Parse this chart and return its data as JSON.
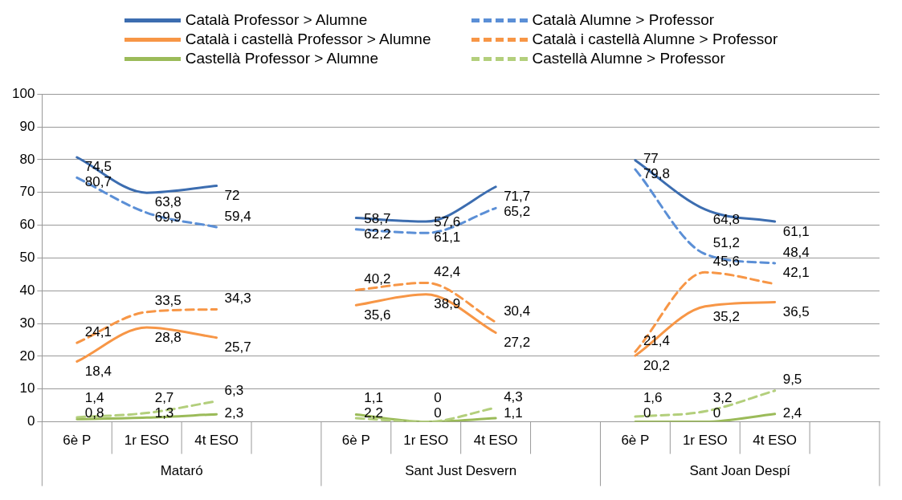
{
  "chart_data": {
    "type": "line",
    "categories": [
      "6è P",
      "1r ESO",
      "4t ESO",
      null,
      "6è P",
      "1r ESO",
      "4t ESO",
      null,
      "6è P",
      "1r ESO",
      "4t ESO",
      null
    ],
    "annotations": [
      "Mataró",
      "Sant Just Desvern",
      "Sant Joan Despí"
    ],
    "ylim": [
      0,
      100
    ],
    "yticks": [
      0,
      10,
      20,
      30,
      40,
      50,
      60,
      70,
      80,
      90,
      100
    ],
    "grid": "y",
    "legend": "top",
    "marker": "none",
    "series": [
      {
        "name": "Català Professor > Alumne",
        "color": "#3c6db0",
        "line_style": "solid",
        "values": [
          80.7,
          69.9,
          72,
          null,
          62.2,
          61.1,
          71.7,
          null,
          79.8,
          64.8,
          61.1,
          null
        ],
        "value_labels": [
          "80,7",
          "69,9",
          "72",
          null,
          "62,2",
          "61,1",
          "71,7",
          null,
          "79,8",
          "64,8",
          "61,1",
          null
        ]
      },
      {
        "name": "Català Alumne > Professor",
        "color": "#5b8fd6",
        "line_style": "dashed",
        "values": [
          74.5,
          63.8,
          59.4,
          null,
          58.7,
          57.6,
          65.2,
          null,
          77,
          51.2,
          48.4,
          null
        ],
        "value_labels": [
          "74,5",
          "63,8",
          "59,4",
          null,
          "58,7",
          "57,6",
          "65,2",
          null,
          "77",
          "51,2",
          "48,4",
          null
        ]
      },
      {
        "name": "Català i castellà Professor > Alumne",
        "color": "#f79646",
        "line_style": "solid",
        "values": [
          18.4,
          28.8,
          25.7,
          null,
          35.6,
          38.9,
          27.2,
          null,
          20.2,
          35.2,
          36.5,
          null
        ],
        "value_labels": [
          "18,4",
          "28,8",
          "25,7",
          null,
          "35,6",
          "38,9",
          "27,2",
          null,
          "20,2",
          "35,2",
          "36,5",
          null
        ]
      },
      {
        "name": "Català i castellà Alumne > Professor",
        "color": "#f79646",
        "line_style": "dashed",
        "values": [
          24.1,
          33.5,
          34.3,
          null,
          40.2,
          42.4,
          30.4,
          null,
          21.4,
          45.6,
          42.1,
          null
        ],
        "value_labels": [
          "24,1",
          "33,5",
          "34,3",
          null,
          "40,2",
          "42,4",
          "30,4",
          null,
          "21,4",
          "45,6",
          "42,1",
          null
        ]
      },
      {
        "name": "Castellà Professor > Alumne",
        "color": "#9bbb59",
        "line_style": "solid",
        "values": [
          0.8,
          1.3,
          2.3,
          null,
          2.2,
          0,
          1.1,
          null,
          0,
          0,
          2.4,
          null
        ],
        "value_labels": [
          "0,8",
          "1,3",
          "2,3",
          null,
          "2,2",
          "0",
          "1,1",
          null,
          "0",
          "0",
          "2,4",
          null
        ]
      },
      {
        "name": "Castellà Alumne > Professor",
        "color": "#b3cf7c",
        "line_style": "dashed",
        "values": [
          1.4,
          2.7,
          6.3,
          null,
          1.1,
          0,
          4.3,
          null,
          1.6,
          3.2,
          9.5,
          null
        ],
        "value_labels": [
          "1,4",
          "2,7",
          "6,3",
          null,
          "1,1",
          "0",
          "4,3",
          null,
          "1,6",
          "3,2",
          "9,5",
          null
        ]
      }
    ]
  }
}
